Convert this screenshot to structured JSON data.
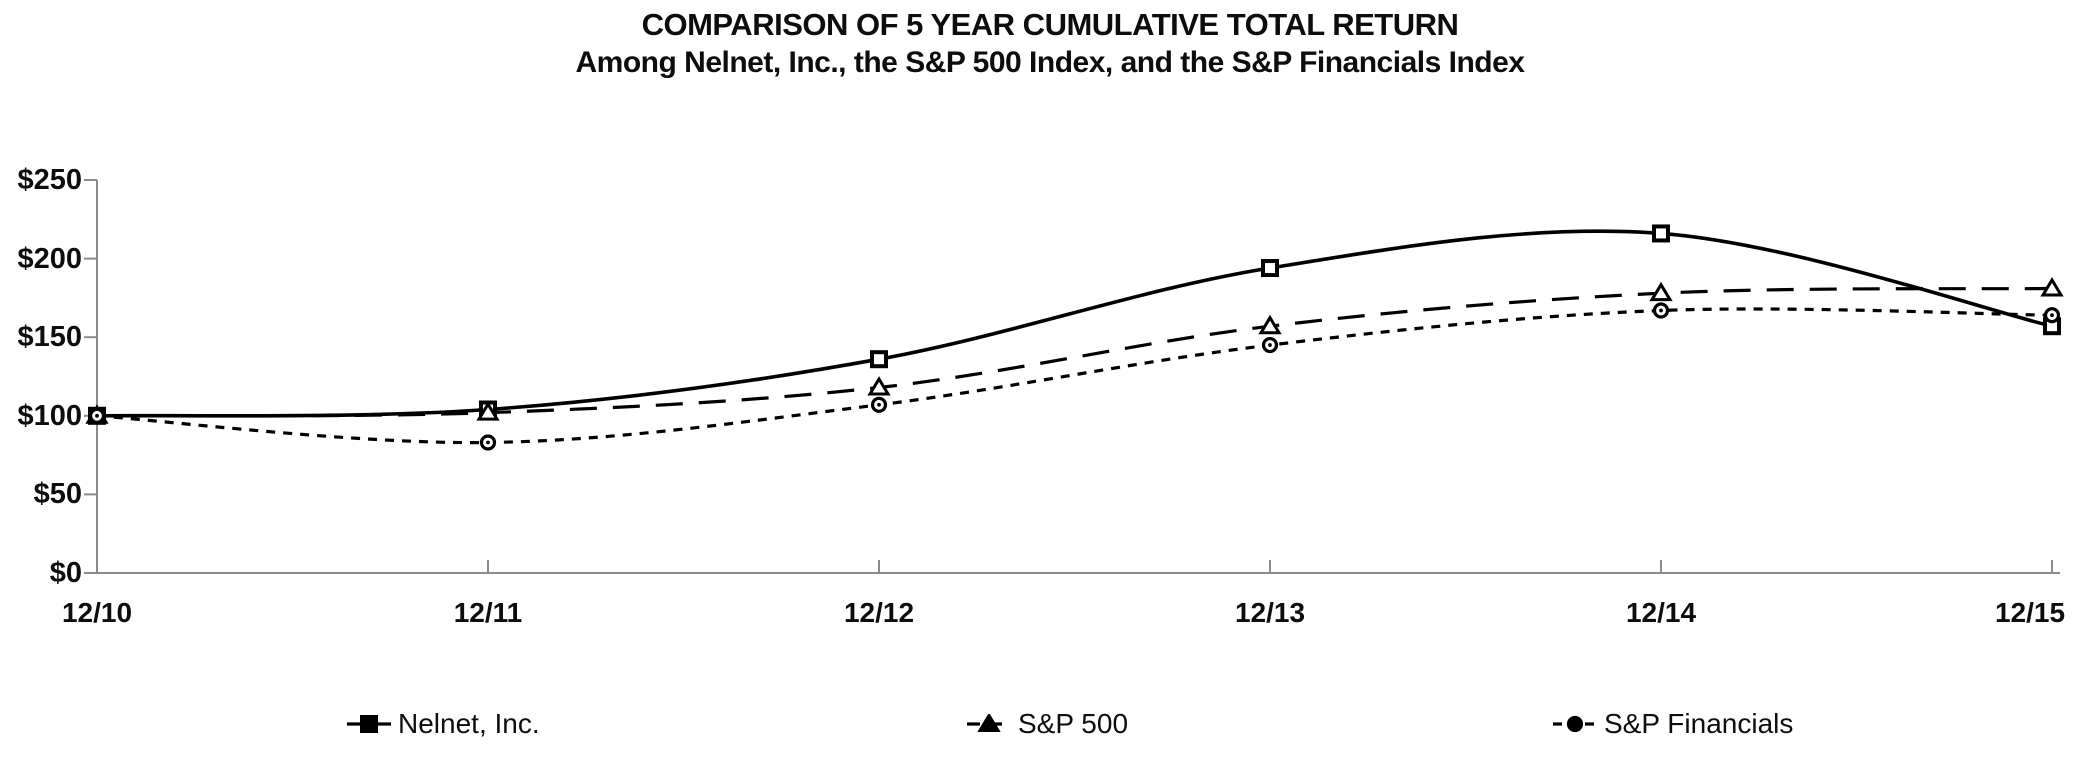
{
  "chart_data": {
    "type": "line",
    "title": "COMPARISON OF 5 YEAR CUMULATIVE TOTAL RETURN",
    "subtitle": "Among Nelnet, Inc., the S&P 500 Index, and the S&P Financials Index",
    "categories": [
      "12/10",
      "12/11",
      "12/12",
      "12/13",
      "12/14",
      "12/15"
    ],
    "y_tick_labels": [
      "$0",
      "$50",
      "$100",
      "$150",
      "$200",
      "$250"
    ],
    "y_tick_values": [
      0,
      50,
      100,
      150,
      200,
      250
    ],
    "ylim": [
      0,
      250
    ],
    "grid": false,
    "smoothed_lines": true,
    "legend_position": "bottom",
    "series": [
      {
        "name": "Nelnet, Inc.",
        "values": [
          100,
          104,
          136,
          194,
          216,
          157
        ],
        "line_style": "solid",
        "marker": "square",
        "color": "#000000"
      },
      {
        "name": "S&P 500",
        "values": [
          100,
          102,
          118,
          157,
          178,
          181
        ],
        "line_style": "dashed",
        "marker": "triangle",
        "color": "#000000"
      },
      {
        "name": "S&P Financials",
        "values": [
          100,
          83,
          107,
          145,
          167,
          164
        ],
        "line_style": "dotted",
        "marker": "circle",
        "color": "#000000"
      }
    ]
  },
  "colors": {
    "axis": "#8c8c8c",
    "line": "#000000",
    "text": "#0d0d0d",
    "background": "#ffffff"
  }
}
